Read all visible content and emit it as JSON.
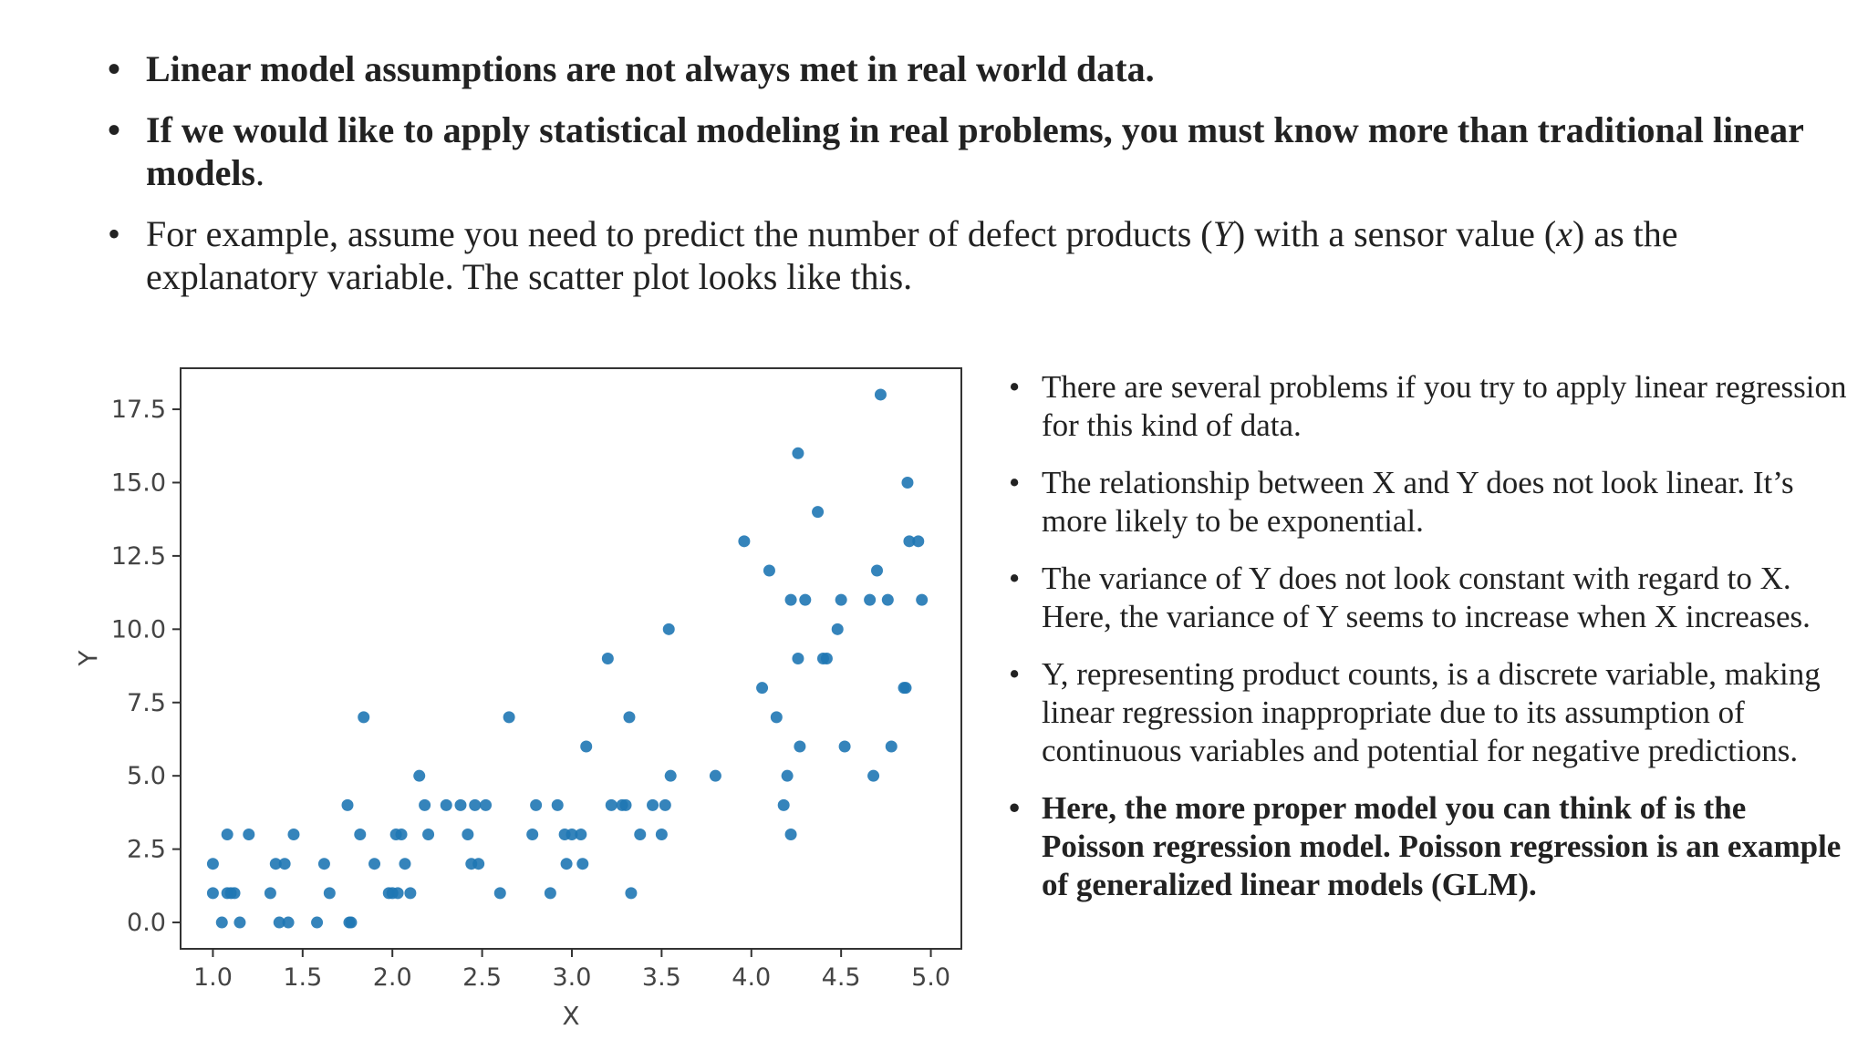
{
  "top_bullets": [
    {
      "bullet": "•",
      "text": "Linear model assumptions are not always met in real world data."
    },
    {
      "bullet": "•",
      "text_bold": "If we would like to apply statistical modeling in real problems, you must know more than traditional linear models",
      "text_tail": "."
    },
    {
      "bullet": "•",
      "t1": "For example, assume you need to predict the number of defect products (",
      "var_y": "Y",
      "t2": ") with a sensor value (",
      "var_x": "x",
      "t3": ") as the explanatory variable. The scatter plot looks like this."
    }
  ],
  "right_bullets": [
    {
      "bullet": "•",
      "text": "There are several problems if you try to apply linear regression for this kind of data."
    },
    {
      "bullet": "•",
      "text": "The relationship between X and Y does not look linear. It’s more likely to be exponential."
    },
    {
      "bullet": "•",
      "text": "The variance of Y does not look constant with regard to X. Here, the variance of Y seems to increase when X increases."
    },
    {
      "bullet": "•",
      "text": "Y, representing product counts, is a discrete variable, making linear regression inappropriate due to its assumption of continuous variables and potential for negative predictions."
    },
    {
      "bullet": "•",
      "text": "Here, the more proper model you can think of is the Poisson regression model. Poisson regression is an example of generalized linear models (GLM)."
    }
  ],
  "chart_data": {
    "type": "scatter",
    "title": "",
    "xlabel": "X",
    "ylabel": "Y",
    "xlim": [
      0.82,
      5.17
    ],
    "ylim": [
      -0.9,
      18.9
    ],
    "xticks": [
      "1.0",
      "1.5",
      "2.0",
      "2.5",
      "3.0",
      "3.5",
      "4.0",
      "4.5",
      "5.0"
    ],
    "yticks": [
      "0.0",
      "2.5",
      "5.0",
      "7.5",
      "10.0",
      "12.5",
      "15.0",
      "17.5"
    ],
    "marker_color": "#1f77b4",
    "points": [
      [
        1.0,
        2
      ],
      [
        1.0,
        1
      ],
      [
        1.05,
        0
      ],
      [
        1.08,
        3
      ],
      [
        1.08,
        1
      ],
      [
        1.1,
        1
      ],
      [
        1.12,
        1
      ],
      [
        1.15,
        0
      ],
      [
        1.2,
        3
      ],
      [
        1.32,
        1
      ],
      [
        1.35,
        2
      ],
      [
        1.37,
        0
      ],
      [
        1.4,
        2
      ],
      [
        1.42,
        0
      ],
      [
        1.45,
        3
      ],
      [
        1.58,
        0
      ],
      [
        1.62,
        2
      ],
      [
        1.65,
        1
      ],
      [
        1.75,
        4
      ],
      [
        1.76,
        0
      ],
      [
        1.77,
        0
      ],
      [
        1.82,
        3
      ],
      [
        1.84,
        7
      ],
      [
        1.9,
        2
      ],
      [
        1.98,
        1
      ],
      [
        2.0,
        1
      ],
      [
        2.02,
        3
      ],
      [
        2.03,
        1
      ],
      [
        2.05,
        3
      ],
      [
        2.07,
        2
      ],
      [
        2.1,
        1
      ],
      [
        2.15,
        5
      ],
      [
        2.18,
        4
      ],
      [
        2.2,
        3
      ],
      [
        2.3,
        4
      ],
      [
        2.38,
        4
      ],
      [
        2.42,
        3
      ],
      [
        2.44,
        2
      ],
      [
        2.46,
        4
      ],
      [
        2.48,
        2
      ],
      [
        2.52,
        4
      ],
      [
        2.6,
        1
      ],
      [
        2.65,
        7
      ],
      [
        2.78,
        3
      ],
      [
        2.8,
        4
      ],
      [
        2.88,
        1
      ],
      [
        2.92,
        4
      ],
      [
        2.96,
        3
      ],
      [
        2.97,
        2
      ],
      [
        3.0,
        3
      ],
      [
        3.05,
        3
      ],
      [
        3.06,
        2
      ],
      [
        3.08,
        6
      ],
      [
        3.2,
        9
      ],
      [
        3.22,
        4
      ],
      [
        3.28,
        4
      ],
      [
        3.3,
        4
      ],
      [
        3.32,
        7
      ],
      [
        3.33,
        1
      ],
      [
        3.38,
        3
      ],
      [
        3.45,
        4
      ],
      [
        3.5,
        3
      ],
      [
        3.52,
        4
      ],
      [
        3.54,
        10
      ],
      [
        3.55,
        5
      ],
      [
        3.8,
        5
      ],
      [
        3.96,
        13
      ],
      [
        4.06,
        8
      ],
      [
        4.1,
        12
      ],
      [
        4.14,
        7
      ],
      [
        4.18,
        4
      ],
      [
        4.2,
        5
      ],
      [
        4.22,
        3
      ],
      [
        4.22,
        11
      ],
      [
        4.26,
        16
      ],
      [
        4.27,
        6
      ],
      [
        4.3,
        11
      ],
      [
        4.26,
        9
      ],
      [
        4.37,
        14
      ],
      [
        4.4,
        9
      ],
      [
        4.42,
        9
      ],
      [
        4.48,
        10
      ],
      [
        4.5,
        11
      ],
      [
        4.52,
        6
      ],
      [
        4.66,
        11
      ],
      [
        4.68,
        5
      ],
      [
        4.7,
        12
      ],
      [
        4.72,
        18
      ],
      [
        4.76,
        11
      ],
      [
        4.78,
        6
      ],
      [
        4.85,
        8
      ],
      [
        4.86,
        8
      ],
      [
        4.87,
        15
      ],
      [
        4.88,
        13
      ],
      [
        4.93,
        13
      ],
      [
        4.95,
        11
      ]
    ]
  }
}
